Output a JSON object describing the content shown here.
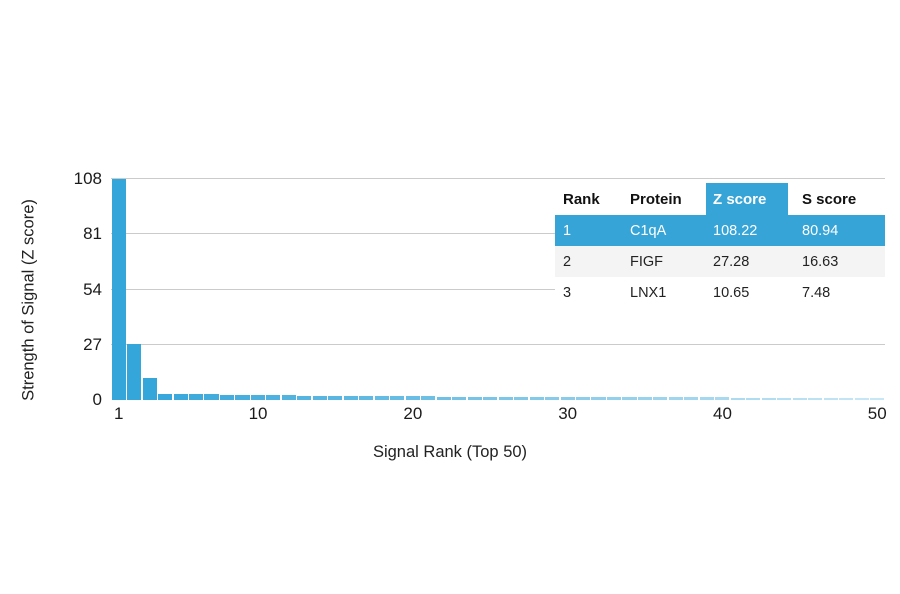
{
  "figure": {
    "y_axis": {
      "title": "Strength of Signal (Z score)",
      "tick_labels": [
        "108",
        "81",
        "54",
        "27",
        "0"
      ]
    },
    "x_axis": {
      "title": "Signal Rank (Top 50)",
      "tick_labels": [
        "1",
        "10",
        "20",
        "30",
        "40",
        "50"
      ]
    }
  },
  "table": {
    "headers": [
      "Rank",
      "Protein",
      "Z score",
      "S score"
    ],
    "highlighted_column": "Z score",
    "rows": [
      {
        "rank": "1",
        "protein": "C1qA",
        "z_score": "108.22",
        "s_score": "80.94",
        "highlighted": true
      },
      {
        "rank": "2",
        "protein": "FIGF",
        "z_score": "27.28",
        "s_score": "16.63",
        "highlighted": false
      },
      {
        "rank": "3",
        "protein": "LNX1",
        "z_score": "10.65",
        "s_score": "7.48",
        "highlighted": false
      }
    ]
  },
  "chart_data": {
    "type": "bar",
    "title": "",
    "xlabel": "Signal Rank (Top 50)",
    "ylabel": "Strength of Signal (Z score)",
    "x": [
      1,
      2,
      3,
      4,
      5,
      6,
      7,
      8,
      9,
      10,
      11,
      12,
      13,
      14,
      15,
      16,
      17,
      18,
      19,
      20,
      21,
      22,
      23,
      24,
      25,
      26,
      27,
      28,
      29,
      30,
      31,
      32,
      33,
      34,
      35,
      36,
      37,
      38,
      39,
      40,
      41,
      42,
      43,
      44,
      45,
      46,
      47,
      48,
      49,
      50
    ],
    "values": [
      108.22,
      27.28,
      10.65,
      3.0,
      2.9,
      2.8,
      2.7,
      2.6,
      2.5,
      2.45,
      2.4,
      2.3,
      2.2,
      2.1,
      2.05,
      2.0,
      1.95,
      1.9,
      1.85,
      1.8,
      1.75,
      1.7,
      1.68,
      1.65,
      1.62,
      1.6,
      1.57,
      1.55,
      1.52,
      1.5,
      1.47,
      1.45,
      1.42,
      1.4,
      1.38,
      1.35,
      1.32,
      1.3,
      1.28,
      1.25,
      1.22,
      1.2,
      1.18,
      1.15,
      1.12,
      1.1,
      1.08,
      1.05,
      1.02,
      1.0
    ],
    "top_points": [
      {
        "rank": 1,
        "protein": "C1qA",
        "z_score": 108.22,
        "s_score": 80.94
      },
      {
        "rank": 2,
        "protein": "FIGF",
        "z_score": 27.28,
        "s_score": 16.63
      },
      {
        "rank": 3,
        "protein": "LNX1",
        "z_score": 10.65,
        "s_score": 7.48
      }
    ],
    "ylim": [
      0,
      108
    ],
    "yticks": [
      0,
      27,
      54,
      81,
      108
    ],
    "xticks": [
      1,
      10,
      20,
      30,
      40,
      50
    ],
    "grid": "horizontal",
    "legend": "none",
    "bar_color": "#35a6da",
    "bar_fade": "bars fade to lighter blue as rank increases"
  },
  "colors": {
    "bar": "#35a6da",
    "table_highlight": "#37a4d8",
    "gridline": "#cbcbcb",
    "row_alt": "#f4f4f4",
    "text": "#222222",
    "background": "#ffffff"
  }
}
